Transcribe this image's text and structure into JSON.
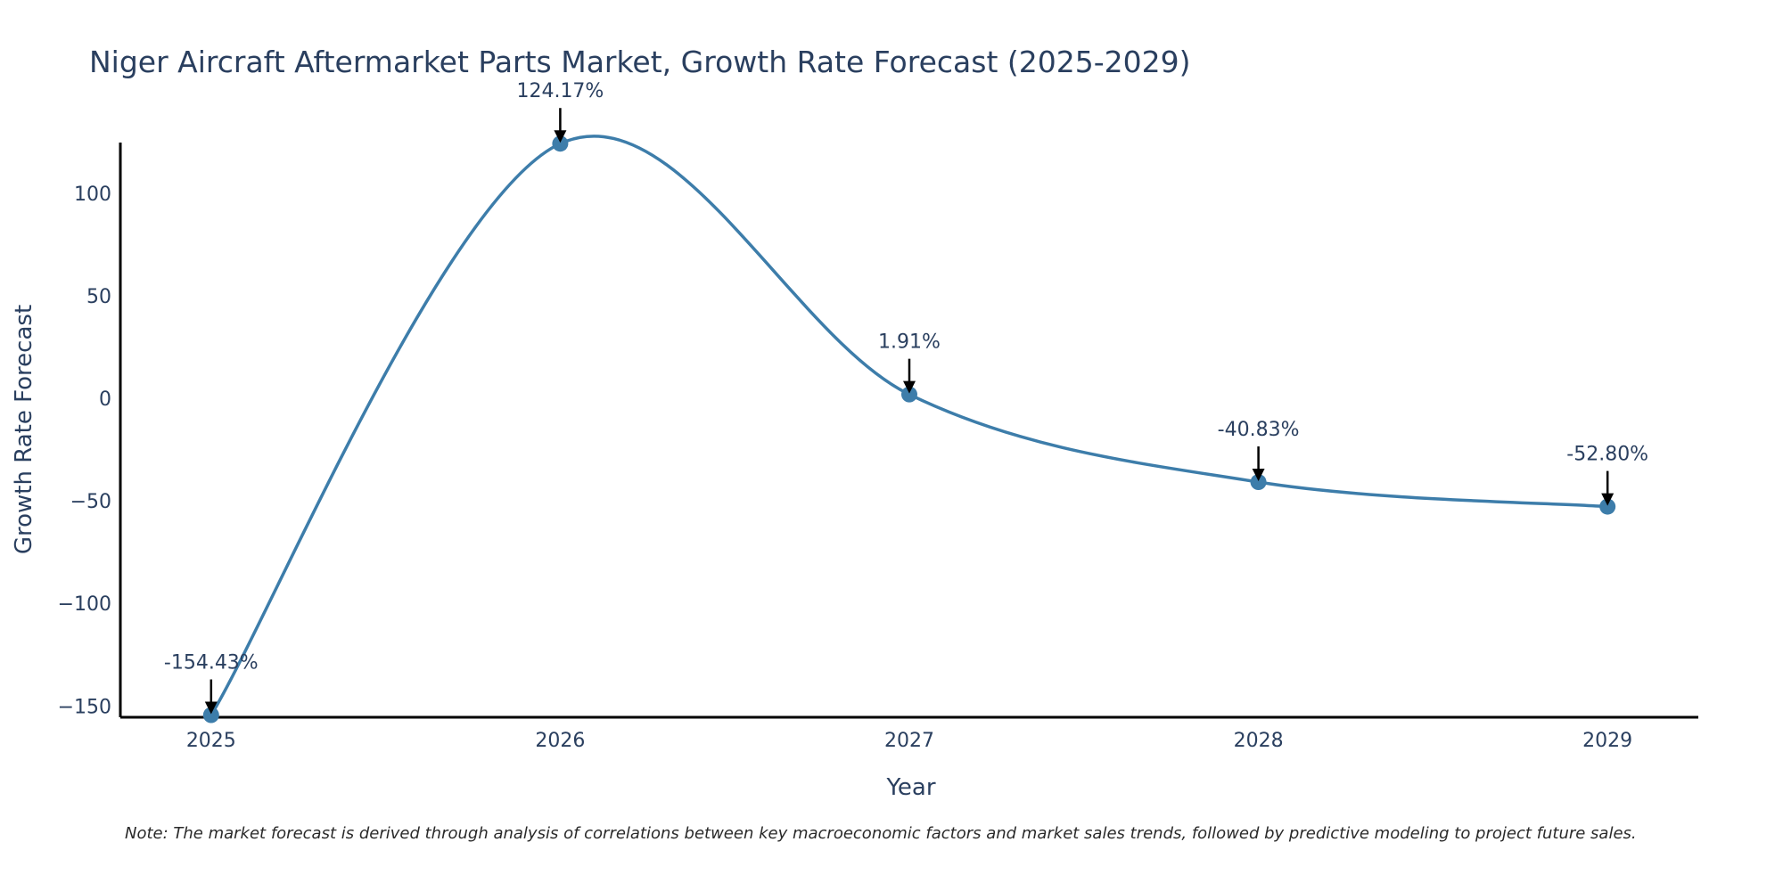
{
  "chart_data": {
    "type": "line",
    "title": "Niger Aircraft Aftermarket Parts Market, Growth Rate Forecast (2025-2029)",
    "xlabel": "Year",
    "ylabel": "Growth Rate Forecast",
    "categories": [
      "2025",
      "2026",
      "2027",
      "2028",
      "2029"
    ],
    "x": [
      2025,
      2026,
      2027,
      2028,
      2029
    ],
    "series": [
      {
        "name": "Growth Rate Forecast",
        "values": [
          -154.43,
          124.17,
          1.91,
          -40.83,
          -52.8
        ],
        "labels": [
          "-154.43%",
          "124.17%",
          "1.91%",
          "-40.83%",
          "-52.80%"
        ],
        "color": "#3d7daa"
      }
    ],
    "yticks": [
      100,
      50,
      0,
      -50,
      -100,
      -150
    ],
    "ytick_labels": [
      "100",
      "50",
      "0",
      "−50",
      "−100",
      "−150"
    ],
    "xlim": [
      2024.74,
      2029.26
    ],
    "ylim": [
      -155.5,
      124.7
    ],
    "grid": false,
    "line_shape": "spline",
    "note": "Note: The market forecast is derived through analysis of correlations between key macroeconomic factors and market sales trends, followed by predictive modeling to project future sales."
  }
}
